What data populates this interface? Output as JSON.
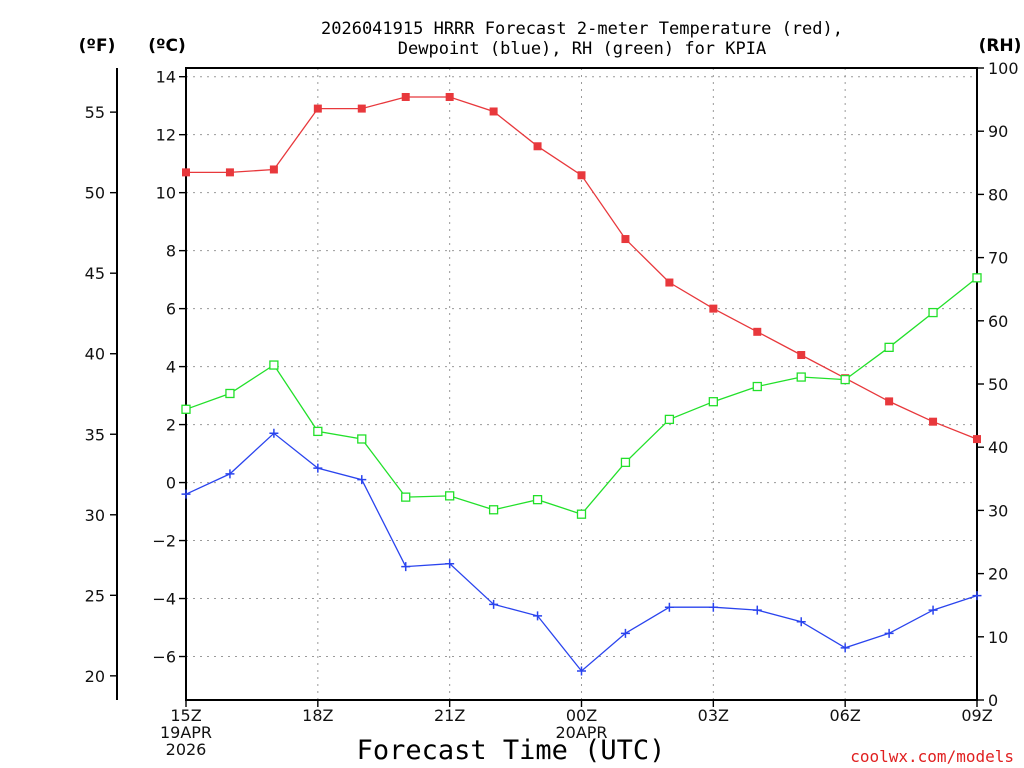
{
  "chart_data": {
    "type": "line",
    "title_lines": [
      "2026041915 HRRR Forecast 2-meter Temperature (red),",
      "Dewpoint (blue), RH (green) for KPIA"
    ],
    "xlabel": "Forecast Time (UTC)",
    "credit": "coolwx.com/models",
    "credit_color": "#e02020",
    "units": {
      "fahrenheit": "(ºF)",
      "celsius": "(ºC)",
      "rh": "(RH)"
    },
    "x_hours": [
      0,
      1,
      2,
      3,
      4,
      5,
      6,
      7,
      8,
      9,
      10,
      11,
      12,
      13,
      14,
      15,
      16,
      17,
      18
    ],
    "x_ticks": [
      {
        "hour": 0,
        "lines": [
          "15Z",
          "19APR",
          "2026"
        ]
      },
      {
        "hour": 3,
        "lines": [
          "18Z"
        ]
      },
      {
        "hour": 6,
        "lines": [
          "21Z"
        ]
      },
      {
        "hour": 9,
        "lines": [
          "00Z",
          "20APR"
        ]
      },
      {
        "hour": 12,
        "lines": [
          "03Z"
        ]
      },
      {
        "hour": 15,
        "lines": [
          "06Z"
        ]
      },
      {
        "hour": 18,
        "lines": [
          "09Z"
        ]
      }
    ],
    "celsius_axis": {
      "range": [
        -7.5,
        14.3
      ],
      "ticks": [
        -6,
        -4,
        -2,
        0,
        2,
        4,
        6,
        8,
        10,
        12,
        14
      ],
      "tick_labels": [
        "−6",
        "−4",
        "−2",
        "0",
        "2",
        "4",
        "6",
        "8",
        "10",
        "12",
        "14"
      ]
    },
    "fahrenheit_axis": {
      "ticks": [
        20,
        25,
        30,
        35,
        40,
        45,
        50,
        55
      ],
      "tick_labels": [
        "20",
        "25",
        "30",
        "35",
        "40",
        "45",
        "50",
        "55"
      ]
    },
    "rh_axis": {
      "range": [
        0,
        100
      ],
      "ticks": [
        0,
        10,
        20,
        30,
        40,
        50,
        60,
        70,
        80,
        90,
        100
      ],
      "tick_labels": [
        "0",
        "10",
        "20",
        "30",
        "40",
        "50",
        "60",
        "70",
        "80",
        "90",
        "100"
      ]
    },
    "series": [
      {
        "name": "2-meter Temperature",
        "axis": "celsius",
        "color": "#e8383c",
        "marker": "filled-square",
        "values": [
          10.7,
          10.7,
          10.8,
          12.9,
          12.9,
          13.3,
          13.3,
          12.8,
          11.6,
          10.6,
          8.4,
          6.9,
          6.0,
          5.2,
          4.4,
          3.6,
          2.8,
          2.1,
          1.5
        ]
      },
      {
        "name": "Dewpoint",
        "axis": "celsius",
        "color": "#2a44ee",
        "marker": "plus",
        "values": [
          -0.4,
          0.3,
          1.7,
          0.5,
          0.1,
          -2.9,
          -2.8,
          -4.2,
          -4.6,
          -6.5,
          -5.2,
          -4.3,
          -4.3,
          -4.4,
          -4.8,
          -5.7,
          -5.2,
          -4.4,
          -3.9
        ]
      },
      {
        "name": "Relative Humidity",
        "axis": "rh",
        "color": "#22e02a",
        "marker": "open-square",
        "values": [
          46,
          48.5,
          53,
          42.5,
          41.3,
          32.1,
          32.3,
          30.1,
          31.7,
          29.4,
          37.6,
          44.4,
          47.2,
          49.6,
          51.1,
          50.7,
          55.8,
          61.3,
          66.8
        ]
      }
    ]
  }
}
